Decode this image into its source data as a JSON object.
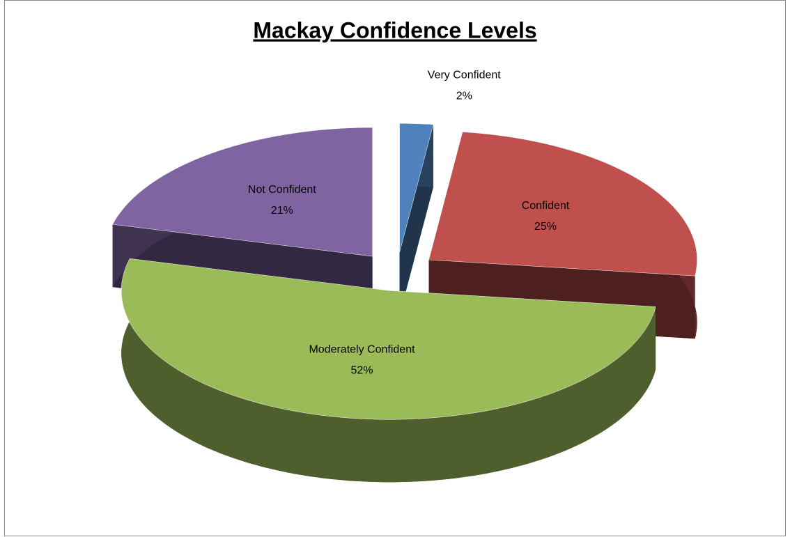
{
  "chart_data": {
    "type": "pie3d",
    "title": "Mackay Confidence Levels",
    "categories": [
      "Very Confident",
      "Confident",
      "Moderately Confident",
      "Not Confident"
    ],
    "values": [
      2,
      25,
      52,
      21
    ],
    "value_labels": [
      "2%",
      "25%",
      "52%",
      "21%"
    ],
    "colors": [
      "#4f81bd",
      "#c0504d",
      "#9bbb59",
      "#8064a2"
    ]
  }
}
